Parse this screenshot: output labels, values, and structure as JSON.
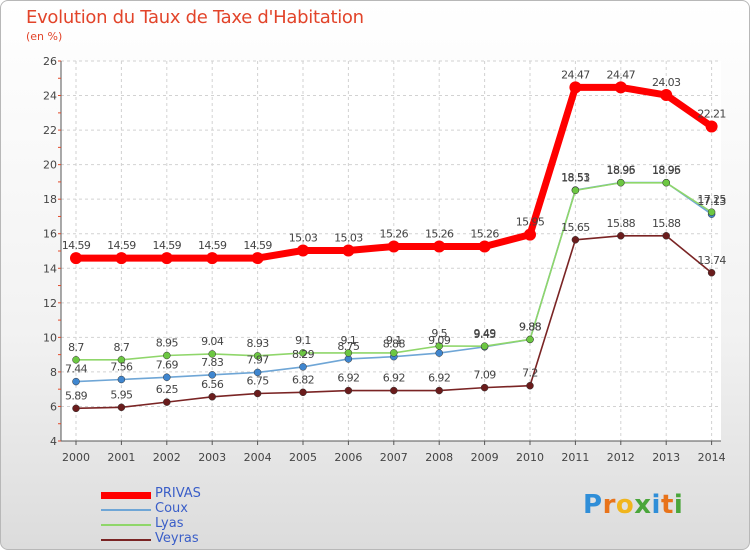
{
  "title": "Evolution du Taux de Taxe d'Habitation",
  "subtitle": "(en %)",
  "logo": {
    "text": "Proxiti"
  },
  "chart_data": {
    "type": "line",
    "title": "Evolution du Taux de Taxe d'Habitation",
    "ylabel": "(en %)",
    "ylim": [
      4,
      26
    ],
    "yticks": [
      4,
      6,
      8,
      10,
      12,
      14,
      16,
      18,
      20,
      22,
      24,
      26
    ],
    "grid": true,
    "legend_position": "bottom-left",
    "x": [
      "2000",
      "2001",
      "2002",
      "2003",
      "2004",
      "2005",
      "2006",
      "2007",
      "2008",
      "2009",
      "2010",
      "2011",
      "2012",
      "2013",
      "2014"
    ],
    "series": [
      {
        "name": "PRIVAS",
        "color": "#ff0000",
        "marker": "#ff0000",
        "width": 7,
        "radius": 6,
        "values": [
          14.59,
          14.59,
          14.59,
          14.59,
          14.59,
          15.03,
          15.03,
          15.26,
          15.26,
          15.26,
          15.95,
          24.47,
          24.47,
          24.03,
          22.21
        ],
        "labels": [
          "14.59",
          "14.59",
          "14.59",
          "14.59",
          "14.59",
          "15.03",
          "15.03",
          "15.26",
          "15.26",
          "15.26",
          "15.95",
          "24.47",
          "24.47",
          "24.03",
          "22.21"
        ]
      },
      {
        "name": "Coux",
        "color": "#6fa6d6",
        "marker": "#3f86cf",
        "width": 1.6,
        "radius": 3.5,
        "values": [
          7.44,
          7.56,
          7.69,
          7.83,
          7.97,
          8.29,
          8.75,
          8.88,
          9.09,
          9.45,
          9.88,
          18.53,
          18.96,
          18.96,
          17.13
        ],
        "labels": [
          "7.44",
          "7.56",
          "7.69",
          "7.83",
          "7.97",
          "8.29",
          "8.75",
          "8.88",
          "9.09",
          "9.45",
          "9.88",
          "18.53",
          "18.96",
          "18.96",
          "17.13"
        ]
      },
      {
        "name": "Lyas",
        "color": "#8fd66a",
        "marker": "#6cc742",
        "width": 1.6,
        "radius": 3.5,
        "values": [
          8.7,
          8.7,
          8.95,
          9.04,
          8.93,
          9.1,
          9.1,
          9.1,
          9.5,
          9.49,
          9.88,
          18.51,
          18.95,
          18.95,
          17.25
        ],
        "labels": [
          "8.7",
          "8.7",
          "8.95",
          "9.04",
          "8.93",
          "9.1",
          "9.1",
          "9.1",
          "9.5",
          "9.49",
          "9.88",
          "18.51",
          "18.95",
          "18.95",
          "17.25"
        ]
      },
      {
        "name": "Veyras",
        "color": "#7a2424",
        "marker": "#6a1c1c",
        "width": 1.6,
        "radius": 3.5,
        "values": [
          5.89,
          5.95,
          6.25,
          6.56,
          6.75,
          6.82,
          6.92,
          6.92,
          6.92,
          7.09,
          7.2,
          15.65,
          15.88,
          15.88,
          13.74
        ],
        "labels": [
          "5.89",
          "5.95",
          "6.25",
          "6.56",
          "6.75",
          "6.82",
          "6.92",
          "6.92",
          "6.92",
          "7.09",
          "7.2",
          "15.65",
          "15.88",
          "15.88",
          "13.74"
        ]
      }
    ]
  }
}
